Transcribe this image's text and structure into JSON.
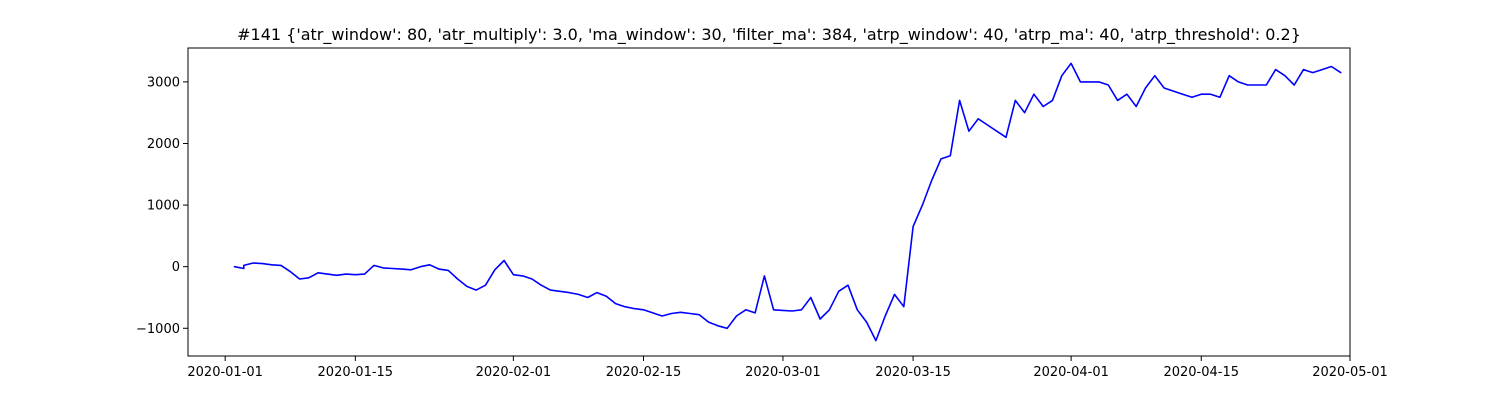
{
  "chart_data": {
    "type": "line",
    "title": "#141 {'atr_window': 80, 'atr_multiply': 3.0, 'ma_window': 30, 'filter_ma': 384, 'atrp_window': 40, 'atrp_ma': 40, 'atrp_threshold': 0.2}",
    "xlabel": "",
    "ylabel": "",
    "x_axis": "date",
    "xlim": [
      "2019-12-28",
      "2020-05-01"
    ],
    "ylim": [
      -1450,
      3550
    ],
    "grid": false,
    "legend": "none",
    "x_ticks": [
      "2020-01-01",
      "2020-01-15",
      "2020-02-01",
      "2020-02-15",
      "2020-03-01",
      "2020-03-15",
      "2020-04-01",
      "2020-04-15",
      "2020-05-01"
    ],
    "y_ticks": [
      -1000,
      0,
      1000,
      2000,
      3000
    ],
    "y_tick_labels": [
      "−1000",
      "0",
      "1000",
      "2000",
      "3000"
    ],
    "series": [
      {
        "color": "#0000ff",
        "x": [
          "2020-01-02",
          "2020-01-03",
          "2020-01-03",
          "2020-01-04",
          "2020-01-05",
          "2020-01-06",
          "2020-01-07",
          "2020-01-08",
          "2020-01-09",
          "2020-01-10",
          "2020-01-11",
          "2020-01-12",
          "2020-01-13",
          "2020-01-14",
          "2020-01-15",
          "2020-01-16",
          "2020-01-17",
          "2020-01-18",
          "2020-01-19",
          "2020-01-20",
          "2020-01-21",
          "2020-01-22",
          "2020-01-23",
          "2020-01-24",
          "2020-01-25",
          "2020-01-26",
          "2020-01-27",
          "2020-01-28",
          "2020-01-29",
          "2020-01-30",
          "2020-01-31",
          "2020-02-01",
          "2020-02-02",
          "2020-02-03",
          "2020-02-04",
          "2020-02-05",
          "2020-02-06",
          "2020-02-07",
          "2020-02-08",
          "2020-02-09",
          "2020-02-10",
          "2020-02-11",
          "2020-02-12",
          "2020-02-13",
          "2020-02-14",
          "2020-02-15",
          "2020-02-16",
          "2020-02-17",
          "2020-02-18",
          "2020-02-19",
          "2020-02-20",
          "2020-02-21",
          "2020-02-22",
          "2020-02-23",
          "2020-02-24",
          "2020-02-25",
          "2020-02-26",
          "2020-02-27",
          "2020-02-28",
          "2020-02-29",
          "2020-03-01",
          "2020-03-02",
          "2020-03-03",
          "2020-03-04",
          "2020-03-05",
          "2020-03-06",
          "2020-03-07",
          "2020-03-08",
          "2020-03-09",
          "2020-03-10",
          "2020-03-11",
          "2020-03-12",
          "2020-03-13",
          "2020-03-14",
          "2020-03-15",
          "2020-03-16",
          "2020-03-17",
          "2020-03-18",
          "2020-03-19",
          "2020-03-20",
          "2020-03-21",
          "2020-03-22",
          "2020-03-23",
          "2020-03-24",
          "2020-03-25",
          "2020-03-26",
          "2020-03-27",
          "2020-03-28",
          "2020-03-29",
          "2020-03-30",
          "2020-03-31",
          "2020-04-01",
          "2020-04-02",
          "2020-04-03",
          "2020-04-04",
          "2020-04-05",
          "2020-04-06",
          "2020-04-07",
          "2020-04-08",
          "2020-04-09",
          "2020-04-10",
          "2020-04-11",
          "2020-04-12",
          "2020-04-13",
          "2020-04-14",
          "2020-04-15",
          "2020-04-16",
          "2020-04-17",
          "2020-04-18",
          "2020-04-19",
          "2020-04-20",
          "2020-04-21",
          "2020-04-22",
          "2020-04-23",
          "2020-04-24",
          "2020-04-25",
          "2020-04-26",
          "2020-04-27",
          "2020-04-28",
          "2020-04-29",
          "2020-04-30"
        ],
        "y": [
          0,
          -30,
          20,
          60,
          50,
          30,
          20,
          -80,
          -200,
          -180,
          -100,
          -120,
          -140,
          -120,
          -130,
          -120,
          20,
          -20,
          -30,
          -40,
          -50,
          0,
          30,
          -40,
          -60,
          -200,
          -320,
          -380,
          -300,
          -50,
          100,
          -130,
          -150,
          -200,
          -300,
          -380,
          -400,
          -420,
          -450,
          -500,
          -420,
          -480,
          -600,
          -650,
          -680,
          -700,
          -750,
          -800,
          -760,
          -740,
          -760,
          -780,
          -900,
          -960,
          -1000,
          -800,
          -700,
          -750,
          -150,
          -700,
          -710,
          -720,
          -700,
          -500,
          -850,
          -700,
          -400,
          -300,
          -700,
          -900,
          -1200,
          -800,
          -450,
          -650,
          650,
          1000,
          1400,
          1750,
          1800,
          2700,
          2200,
          2400,
          2300,
          2200,
          2100,
          2700,
          2500,
          2800,
          2600,
          2700,
          3100,
          3300,
          3000,
          3000,
          3000,
          2950,
          2700,
          2800,
          2600,
          2900,
          3100,
          2900,
          2850,
          2800,
          2750,
          2800,
          2800,
          2750,
          3100,
          3000,
          2950,
          2950,
          2950,
          3200,
          3100,
          2950,
          3200,
          3150,
          3200,
          3250,
          3150
        ]
      }
    ]
  }
}
